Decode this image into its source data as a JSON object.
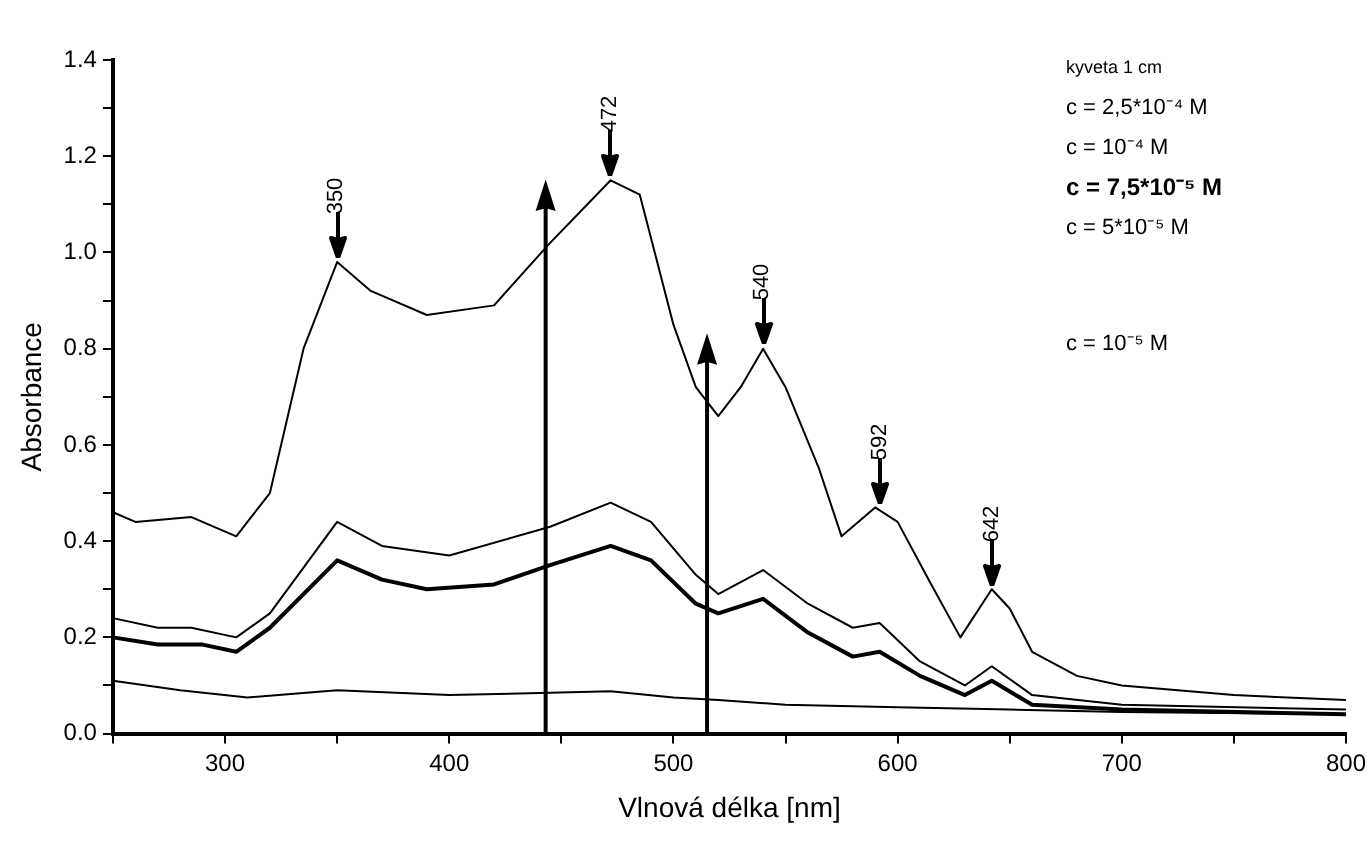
{
  "chart_data": {
    "type": "line",
    "xlabel": "Vlnová délka [nm]",
    "ylabel": "Absorbance",
    "xlim": [
      250,
      800
    ],
    "ylim": [
      0,
      1.4
    ],
    "xticks": [
      {
        "value": 250,
        "label": null
      },
      300,
      {
        "value": 350,
        "label": null
      },
      400,
      {
        "value": 450,
        "label": null
      },
      500,
      {
        "value": 550,
        "label": null
      },
      600,
      {
        "value": 650,
        "label": null
      },
      700,
      {
        "value": 750,
        "label": null
      },
      800
    ],
    "yticks": [
      {
        "value": 0,
        "label": "0.0"
      },
      {
        "value": 0.1,
        "label": null
      },
      {
        "value": 0.2,
        "label": "0.2"
      },
      {
        "value": 0.3,
        "label": null
      },
      {
        "value": 0.4,
        "label": "0.4"
      },
      {
        "value": 0.5,
        "label": null
      },
      {
        "value": 0.6,
        "label": "0.6"
      },
      {
        "value": 0.7,
        "label": null
      },
      {
        "value": 0.8,
        "label": "0.8"
      },
      {
        "value": 0.9,
        "label": null
      },
      {
        "value": 1.0,
        "label": "1.0"
      },
      {
        "value": 1.1,
        "label": null
      },
      {
        "value": 1.2,
        "label": "1.2"
      },
      {
        "value": 1.3,
        "label": null
      },
      {
        "value": 1.4,
        "label": "1.4"
      }
    ],
    "grid": false,
    "legend": false,
    "marker": "none",
    "line_style": "solid",
    "series": [
      {
        "color": "#000000",
        "x": [
          250,
          260,
          285,
          305,
          320,
          335,
          350,
          365,
          390,
          420,
          445,
          472,
          485,
          500,
          510,
          520,
          530,
          540,
          550,
          565,
          575,
          590,
          600,
          615,
          628,
          642,
          650,
          660,
          680,
          700,
          750,
          800
        ],
        "values": [
          0.46,
          0.44,
          0.45,
          0.41,
          0.5,
          0.8,
          0.98,
          0.92,
          0.87,
          0.89,
          1.02,
          1.15,
          1.12,
          0.85,
          0.72,
          0.66,
          0.72,
          0.8,
          0.72,
          0.55,
          0.41,
          0.47,
          0.44,
          0.31,
          0.2,
          0.3,
          0.26,
          0.17,
          0.12,
          0.1,
          0.08,
          0.07
        ]
      },
      {
        "color": "#000000",
        "x": [
          250,
          270,
          285,
          305,
          320,
          350,
          370,
          400,
          445,
          472,
          490,
          510,
          520,
          540,
          560,
          580,
          592,
          610,
          630,
          642,
          660,
          700,
          800
        ],
        "values": [
          0.24,
          0.22,
          0.22,
          0.2,
          0.25,
          0.44,
          0.39,
          0.37,
          0.43,
          0.48,
          0.44,
          0.33,
          0.29,
          0.34,
          0.27,
          0.22,
          0.23,
          0.15,
          0.1,
          0.14,
          0.08,
          0.06,
          0.05
        ]
      },
      {
        "color": "#000000",
        "x": [
          250,
          270,
          290,
          305,
          320,
          350,
          370,
          390,
          420,
          445,
          472,
          490,
          510,
          520,
          540,
          560,
          580,
          592,
          610,
          630,
          642,
          660,
          700,
          800
        ],
        "values": [
          0.2,
          0.185,
          0.185,
          0.17,
          0.22,
          0.36,
          0.32,
          0.3,
          0.31,
          0.35,
          0.39,
          0.36,
          0.27,
          0.25,
          0.28,
          0.21,
          0.16,
          0.17,
          0.12,
          0.08,
          0.11,
          0.06,
          0.05,
          0.04
        ]
      },
      {
        "color": "#000000",
        "x": [
          250,
          280,
          310,
          350,
          400,
          445,
          472,
          500,
          520,
          550,
          600,
          650,
          700,
          800
        ],
        "values": [
          0.11,
          0.09,
          0.075,
          0.09,
          0.08,
          0.085,
          0.088,
          0.075,
          0.07,
          0.06,
          0.055,
          0.05,
          0.045,
          0.04
        ]
      }
    ],
    "ref_lines": [
      {
        "axis": "x",
        "value": 443
      },
      {
        "axis": "x",
        "value": 515
      }
    ],
    "annotations": [
      {
        "text": "350",
        "x": 350,
        "y": 0.98
      },
      {
        "text": "472",
        "x": 472,
        "y": 1.15
      },
      {
        "text": "540",
        "x": 540,
        "y": 0.8
      },
      {
        "text": "592",
        "x": 592,
        "y": 0.47
      },
      {
        "text": "642",
        "x": 642,
        "y": 0.3
      },
      "kyveta 1 cm",
      "c = 2,5*10⁻⁴ M",
      "c = 10⁻⁴ M",
      "c = 7,5*10⁻⁵ M",
      "c = 5*10⁻⁵ M",
      "c = 10⁻⁵ M"
    ]
  }
}
